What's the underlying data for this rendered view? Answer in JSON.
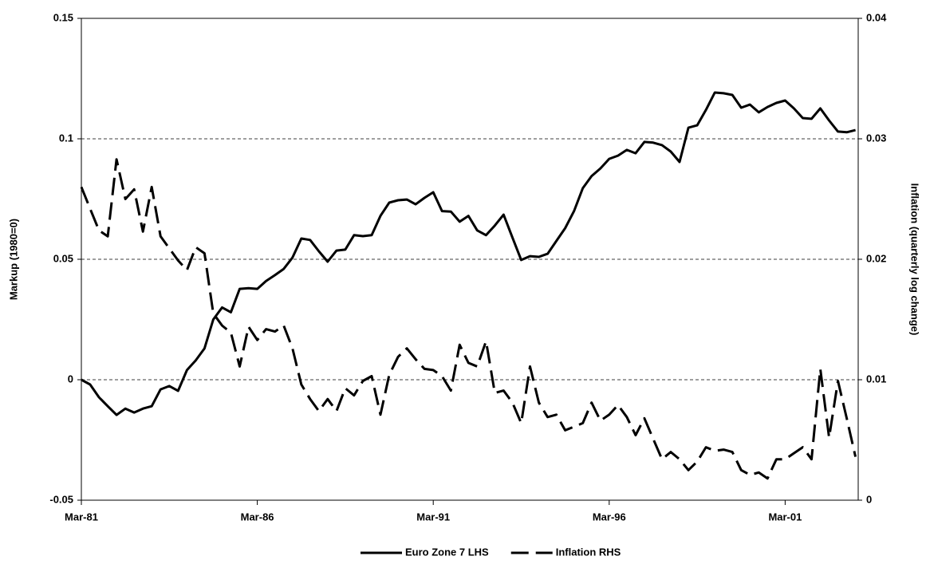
{
  "chart_data": {
    "type": "line",
    "y_label": "Markup (1980=0)",
    "y2_label": "Inflation (quarterly log change)",
    "categories": [
      "Mar-81",
      null,
      null,
      null,
      null,
      null,
      null,
      null,
      null,
      null,
      null,
      null,
      null,
      null,
      null,
      null,
      null,
      null,
      null,
      null,
      "Mar-86",
      null,
      null,
      null,
      null,
      null,
      null,
      null,
      null,
      null,
      null,
      null,
      null,
      null,
      null,
      null,
      null,
      null,
      null,
      null,
      "Mar-91",
      null,
      null,
      null,
      null,
      null,
      null,
      null,
      null,
      null,
      null,
      null,
      null,
      null,
      null,
      null,
      null,
      null,
      null,
      null,
      "Mar-96",
      null,
      null,
      null,
      null,
      null,
      null,
      null,
      null,
      null,
      null,
      null,
      null,
      null,
      null,
      null,
      null,
      null,
      null,
      null,
      "Mar-01",
      null,
      null,
      null,
      null,
      null,
      null,
      null,
      null
    ],
    "series": [
      {
        "name": "Euro Zone 7 LHS",
        "color": "#000000",
        "dash": false,
        "axis": "y",
        "values": [
          0,
          -0.002,
          -0.0073,
          -0.011,
          -0.0146,
          -0.012,
          -0.0136,
          -0.012,
          -0.011,
          -0.004,
          -0.0026,
          -0.0046,
          0.004,
          0.008,
          0.013,
          0.025,
          0.03,
          0.028,
          0.0377,
          0.038,
          0.0377,
          0.041,
          0.0434,
          0.046,
          0.0507,
          0.0586,
          0.058,
          0.0533,
          0.049,
          0.0536,
          0.054,
          0.06,
          0.0596,
          0.06,
          0.068,
          0.0735,
          0.0745,
          0.0748,
          0.0728,
          0.0755,
          0.0778,
          0.07,
          0.0698,
          0.0656,
          0.068,
          0.062,
          0.06,
          0.064,
          0.0685,
          0.059,
          0.0497,
          0.0513,
          0.051,
          0.0523,
          0.0576,
          0.0629,
          0.07,
          0.0795,
          0.0845,
          0.0877,
          0.0917,
          0.093,
          0.0954,
          0.094,
          0.0987,
          0.0984,
          0.0974,
          0.0947,
          0.0904,
          0.1046,
          0.1056,
          0.112,
          0.1192,
          0.1189,
          0.1182,
          0.1129,
          0.1142,
          0.111,
          0.1132,
          0.1149,
          0.1159,
          0.1126,
          0.1086,
          0.1083,
          0.1126,
          0.1076,
          0.103,
          0.1027,
          0.1036
        ]
      },
      {
        "name": "Inflation RHS",
        "color": "#000000",
        "dash": true,
        "axis": "y2",
        "values": [
          0.026,
          0.0242,
          0.0224,
          0.0219,
          0.0283,
          0.025,
          0.0258,
          0.0223,
          0.026,
          0.0219,
          0.0209,
          0.0199,
          0.0191,
          0.021,
          0.0205,
          0.0155,
          0.0145,
          0.0139,
          0.0111,
          0.0144,
          0.0133,
          0.0142,
          0.014,
          0.0145,
          0.0126,
          0.0096,
          0.0084,
          0.0074,
          0.0084,
          0.0074,
          0.0093,
          0.0087,
          0.0099,
          0.0103,
          0.0071,
          0.0104,
          0.0119,
          0.0126,
          0.0117,
          0.0109,
          0.0108,
          0.0103,
          0.0091,
          0.0129,
          0.0114,
          0.0111,
          0.0132,
          0.0089,
          0.0091,
          0.0081,
          0.0064,
          0.0111,
          0.0081,
          0.0069,
          0.0071,
          0.0058,
          0.0061,
          0.0064,
          0.0081,
          0.0066,
          0.0071,
          0.0079,
          0.0069,
          0.0054,
          0.0068,
          0.0051,
          0.0034,
          0.004,
          0.0034,
          0.0025,
          0.0032,
          0.0044,
          0.0041,
          0.0042,
          0.004,
          0.0025,
          0.0021,
          0.0023,
          0.0018,
          0.0034,
          0.0034,
          0.0039,
          0.0044,
          0.0034,
          0.0109,
          0.0052,
          0.0099,
          0.0068,
          0.0036
        ]
      }
    ],
    "ylim": [
      -0.05,
      0.15
    ],
    "yticks": [
      -0.05,
      0,
      0.05,
      0.1,
      0.15
    ],
    "y2lim": [
      0,
      0.04
    ],
    "y2ticks": [
      0,
      0.01,
      0.02,
      0.03,
      0.04
    ],
    "grid": true,
    "legend": "bottom"
  }
}
